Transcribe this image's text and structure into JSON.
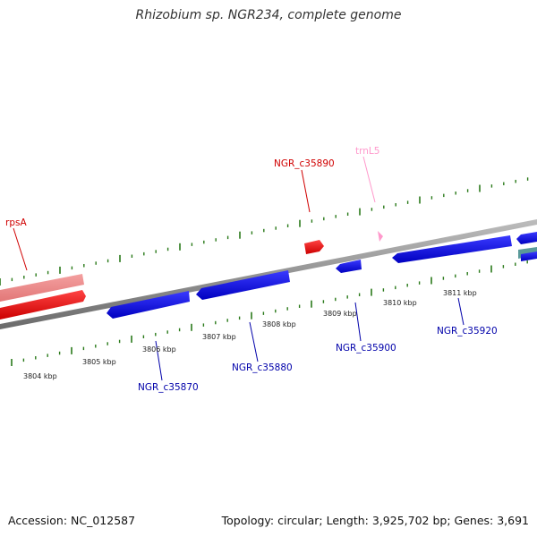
{
  "title": "Rhizobium sp. NGR234, complete genome",
  "footer": {
    "accession": "Accession: NC_012587",
    "summary": "Topology: circular; Length: 3,925,702 bp; Genes: 3,691"
  },
  "colors": {
    "forward_gene": "#e00000",
    "forward_gene_light": "#ee8888",
    "reverse_gene": "#0000dd",
    "trna": "#ff99cc",
    "backbone": "#8a8a8a",
    "ticks": "#2a7a1a"
  },
  "ticks": [
    "3804 kbp",
    "3805 kbp",
    "3806 kbp",
    "3807 kbp",
    "3808 kbp",
    "3809 kbp",
    "3810 kbp",
    "3811 kbp"
  ],
  "labels": {
    "rpsA": "rpsA",
    "ngr_c35890": "NGR_c35890",
    "trnL5": "trnL5",
    "ngr_c35870": "NGR_c35870",
    "ngr_c35880": "NGR_c35880",
    "ngr_c35900": "NGR_c35900",
    "ngr_c35920": "NGR_c35920"
  }
}
